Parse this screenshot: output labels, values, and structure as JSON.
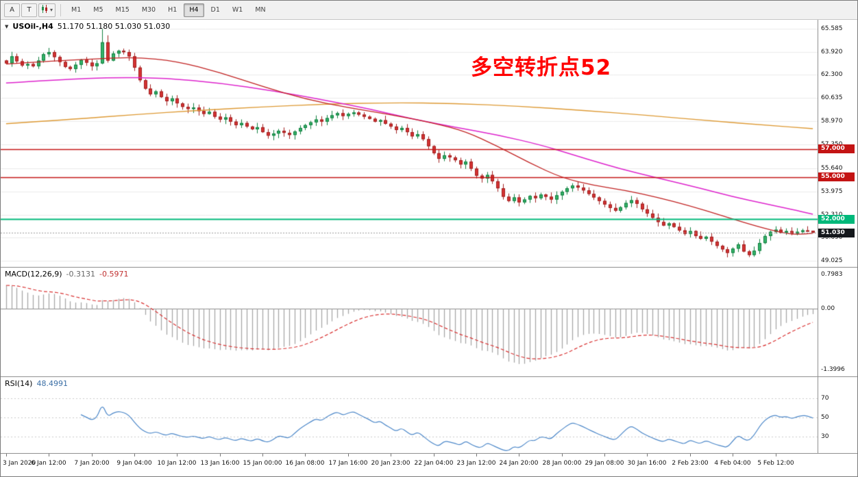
{
  "toolbar": {
    "tool_arrow": "A",
    "tool_text": "T",
    "chart_type_caret": "▾",
    "timeframes": [
      "M1",
      "M5",
      "M15",
      "M30",
      "H1",
      "H4",
      "D1",
      "W1",
      "MN"
    ],
    "active_timeframe": "H4"
  },
  "main_chart": {
    "symbol_tf": "USOil-,H4",
    "ohlc_text": "51.170 51.180 51.030 51.030",
    "annotation": "多空转折点52",
    "axis_labels": [
      "65.585",
      "63.920",
      "62.300",
      "60.635",
      "58.970",
      "57.350",
      "55.640",
      "53.975",
      "52.310",
      "50.690",
      "49.025"
    ],
    "hlines": [
      {
        "value": 57.0,
        "label": "57.000",
        "color": "#c41414",
        "width": 1.5
      },
      {
        "value": 55.0,
        "label": "55.000",
        "color": "#c41414",
        "width": 1.5
      },
      {
        "value": 52.0,
        "label": "52.000",
        "color": "#00b87a",
        "width": 2
      }
    ],
    "price_label": {
      "value": 51.03,
      "label": "51.030",
      "color": "#15181c"
    }
  },
  "macd": {
    "name": "MACD(12,26,9)",
    "value_main": "-0.3131",
    "value_signal": "-0.5971",
    "fast": 12,
    "slow": 26,
    "signal": 9,
    "axis_labels": [
      "0.7983",
      "0.00",
      "-1.3996"
    ]
  },
  "rsi": {
    "name": "RSI(14)",
    "value": "48.4991",
    "period": 14,
    "levels": [
      70,
      50,
      30
    ],
    "axis_labels": [
      "70",
      "50",
      "30"
    ]
  },
  "time_axis": [
    "3 Jan 2020",
    "6 Jan 12:00",
    "7 Jan 20:00",
    "9 Jan 04:00",
    "10 Jan 12:00",
    "13 Jan 16:00",
    "15 Jan 00:00",
    "16 Jan 08:00",
    "17 Jan 16:00",
    "20 Jan 23:00",
    "22 Jan 04:00",
    "23 Jan 12:00",
    "24 Jan 20:00",
    "28 Jan 00:00",
    "29 Jan 08:00",
    "30 Jan 16:00",
    "2 Feb 23:00",
    "4 Feb 04:00",
    "5 Feb 12:00"
  ],
  "time_label_step": 8,
  "chart_data": {
    "type": "candlestick+indicators",
    "symbol": "USOil-",
    "timeframe": "H4",
    "ohlc_current": {
      "open": "51.170",
      "high": "51.180",
      "low": "51.030",
      "close": "51.030"
    },
    "y_range": [
      49.025,
      65.585
    ],
    "closes": [
      63.1,
      63.6,
      63.25,
      62.95,
      63.05,
      62.9,
      63.3,
      63.75,
      63.9,
      63.55,
      63.2,
      62.85,
      62.7,
      63.0,
      63.35,
      63.15,
      62.9,
      63.1,
      64.6,
      63.3,
      63.8,
      64.0,
      63.9,
      63.6,
      62.8,
      61.9,
      61.3,
      60.9,
      61.1,
      60.7,
      60.4,
      60.6,
      60.25,
      60.0,
      59.85,
      59.95,
      59.7,
      59.5,
      59.65,
      59.3,
      59.1,
      59.25,
      58.95,
      58.7,
      58.85,
      58.6,
      58.4,
      58.55,
      58.2,
      57.95,
      58.1,
      58.3,
      58.15,
      58.0,
      58.25,
      58.5,
      58.7,
      58.9,
      59.1,
      58.95,
      59.2,
      59.4,
      59.55,
      59.35,
      59.5,
      59.6,
      59.45,
      59.3,
      59.15,
      58.95,
      59.05,
      58.8,
      58.6,
      58.35,
      58.5,
      58.2,
      57.9,
      58.05,
      57.7,
      57.2,
      56.7,
      56.3,
      56.55,
      56.4,
      56.2,
      55.9,
      56.1,
      55.6,
      55.1,
      54.9,
      55.15,
      54.7,
      54.2,
      53.6,
      53.3,
      53.55,
      53.2,
      53.4,
      53.65,
      53.5,
      53.75,
      53.6,
      53.4,
      53.7,
      53.95,
      54.2,
      54.4,
      54.25,
      54.05,
      53.8,
      53.55,
      53.3,
      53.05,
      52.8,
      52.6,
      52.85,
      53.15,
      53.35,
      53.1,
      52.7,
      52.4,
      52.1,
      51.8,
      51.55,
      51.7,
      51.45,
      51.2,
      50.95,
      51.15,
      50.8,
      50.6,
      50.75,
      50.4,
      50.1,
      49.85,
      49.6,
      49.9,
      50.2,
      49.7,
      49.45,
      49.75,
      50.3,
      50.8,
      51.1,
      51.25,
      51.05,
      51.15,
      50.95,
      51.1,
      51.2,
      51.17,
      51.03
    ],
    "overrides": {
      "8": {
        "h": 64.2
      },
      "18": {
        "h": 65.55
      },
      "19": {
        "h": 65.1
      },
      "135": {
        "l": 49.28
      },
      "139": {
        "l": 49.3
      },
      "151": {
        "h": 51.18,
        "l": 51.03
      }
    },
    "ma_red": [
      [
        0,
        63.05
      ],
      [
        8,
        63.25
      ],
      [
        16,
        63.4
      ],
      [
        24,
        63.55
      ],
      [
        32,
        63.25
      ],
      [
        40,
        62.45
      ],
      [
        48,
        61.45
      ],
      [
        56,
        60.55
      ],
      [
        64,
        59.95
      ],
      [
        72,
        59.45
      ],
      [
        80,
        58.85
      ],
      [
        86,
        58.25
      ],
      [
        92,
        57.2
      ],
      [
        98,
        56.0
      ],
      [
        104,
        54.95
      ],
      [
        110,
        54.4
      ],
      [
        116,
        54.05
      ],
      [
        122,
        53.55
      ],
      [
        128,
        52.95
      ],
      [
        134,
        52.25
      ],
      [
        140,
        51.55
      ],
      [
        145,
        51.05
      ],
      [
        148,
        50.9
      ],
      [
        151,
        51.0
      ]
    ],
    "ma_magenta": [
      [
        0,
        61.7
      ],
      [
        10,
        61.95
      ],
      [
        20,
        62.1
      ],
      [
        30,
        62.05
      ],
      [
        40,
        61.7
      ],
      [
        50,
        61.15
      ],
      [
        60,
        60.45
      ],
      [
        68,
        59.85
      ],
      [
        76,
        59.15
      ],
      [
        84,
        58.55
      ],
      [
        92,
        58.0
      ],
      [
        100,
        57.3
      ],
      [
        106,
        56.6
      ],
      [
        112,
        55.9
      ],
      [
        118,
        55.3
      ],
      [
        124,
        54.75
      ],
      [
        130,
        54.2
      ],
      [
        136,
        53.6
      ],
      [
        142,
        53.1
      ],
      [
        147,
        52.7
      ],
      [
        151,
        52.35
      ]
    ],
    "ma_orange": [
      [
        0,
        58.8
      ],
      [
        12,
        59.1
      ],
      [
        24,
        59.45
      ],
      [
        36,
        59.75
      ],
      [
        48,
        60.0
      ],
      [
        60,
        60.2
      ],
      [
        72,
        60.3
      ],
      [
        84,
        60.25
      ],
      [
        96,
        60.05
      ],
      [
        108,
        59.75
      ],
      [
        120,
        59.4
      ],
      [
        132,
        59.0
      ],
      [
        142,
        58.7
      ],
      [
        151,
        58.45
      ]
    ],
    "colors": {
      "bull": "#35b36a",
      "bull_edge": "#0f7e3d",
      "bear": "#d53333",
      "bear_edge": "#a01f1f",
      "ma_red": "#c02020",
      "ma_magenta": "#dd22cc",
      "ma_orange": "#dd9933",
      "macd_hist": "#a6a6a6",
      "macd_signal": "#d83030",
      "rsi_line": "#4a86c8",
      "grid": "#ebebeb",
      "bid_line": "#9a9a9a"
    }
  }
}
